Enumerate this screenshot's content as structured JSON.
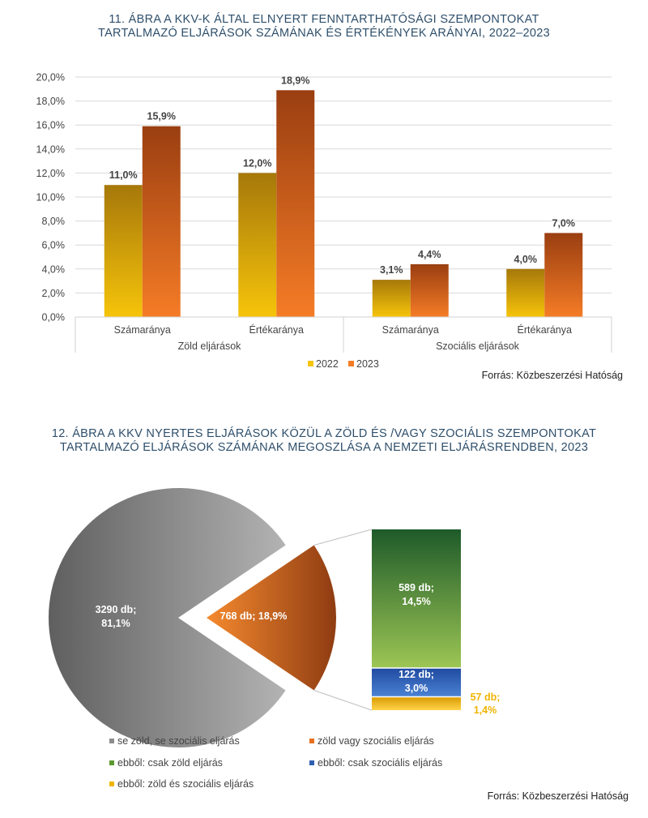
{
  "chart1": {
    "title_lines": [
      "11. ÁBRA A KKV-K ÁLTAL ELNYERT FENNTARTHATÓSÁGI SZEMPONTOKAT",
      "TARTALMAZÓ ELJÁRÁSOK SZÁMÁNAK ÉS ÉRTÉKÉNYEK ARÁNYAI, 2022–2023"
    ],
    "source": "Forrás: Közbeszerzési Hatóság"
  },
  "chart2": {
    "title_lines": [
      "12. ÁBRA A KKV NYERTES ELJÁRÁSOK KÖZÜL A ZÖLD ÉS /VAGY SZOCIÁLIS SZEMPONTOKAT",
      "TARTALMAZÓ ELJÁRÁSOK SZÁMÁNAK MEGOSZLÁSA A NEMZETI ELJÁRÁSRENDBEN, 2023"
    ],
    "source": "Forrás: Közbeszerzési Hatóság"
  },
  "chart_data": [
    {
      "type": "bar",
      "title": "11. ÁBRA A KKV-K ÁLTAL ELNYERT FENNTARTHATÓSÁGI SZEMPONTOKAT TARTALMAZÓ ELJÁRÁSOK SZÁMÁNAK ÉS ÉRTÉKÉNYEK ARÁNYAI, 2022–2023",
      "categories": [
        "Számaránya",
        "Értékaránya",
        "Számaránya",
        "Értékaránya"
      ],
      "groups": [
        {
          "label": "Zöld eljárások",
          "span": 2
        },
        {
          "label": "Szociális eljárások",
          "span": 2
        }
      ],
      "series": [
        {
          "name": "2022",
          "values": [
            11.0,
            12.0,
            3.1,
            4.0
          ],
          "labels": [
            "11,0%",
            "12,0%",
            "3,1%",
            "4,0%"
          ],
          "color_top": "#a6780a",
          "color_bottom": "#f6c40a"
        },
        {
          "name": "2023",
          "values": [
            15.9,
            18.9,
            4.4,
            7.0
          ],
          "labels": [
            "15,9%",
            "18,9%",
            "4,4%",
            "7,0%"
          ],
          "color_top": "#9a3e11",
          "color_bottom": "#f57c26"
        }
      ],
      "y_ticks": [
        0,
        2,
        4,
        6,
        8,
        10,
        12,
        14,
        16,
        18,
        20
      ],
      "y_tick_labels": [
        "0,0%",
        "2,0%",
        "4,0%",
        "6,0%",
        "8,0%",
        "10,0%",
        "12,0%",
        "14,0%",
        "16,0%",
        "18,0%",
        "20,0%"
      ],
      "ylim": [
        0,
        20
      ],
      "grid": true,
      "legend": "bottom"
    },
    {
      "type": "pie",
      "title": "12. ÁBRA A KKV NYERTES ELJÁRÁSOK KÖZÜL A ZÖLD ÉS /VAGY SZOCIÁLIS SZEMPONTOKAT TARTALMAZÓ ELJÁRÁSOK SZÁMÁNAK MEGOSZLÁSA A NEMZETI ELJÁRÁSRENDBEN, 2023",
      "slices": [
        {
          "name": "se zöld, se szociális eljárás",
          "count": 3290,
          "percent": 81.1,
          "label_lines": [
            "3290 db;",
            "81,1%"
          ],
          "color": "#8c8c8c"
        },
        {
          "name": "zöld vagy szociális eljárás",
          "count": 768,
          "percent": 18.9,
          "label_lines": [
            "768 db; 18,9%"
          ],
          "color": "#e5701f"
        }
      ],
      "breakdown": [
        {
          "name": "ebből: csak zöld eljárás",
          "count": 589,
          "percent": 14.5,
          "label_lines": [
            "589 db;",
            "14,5%"
          ],
          "color": "#5c9a30"
        },
        {
          "name": "ebből: csak szociális eljárás",
          "count": 122,
          "percent": 3.0,
          "label_lines": [
            "122 db;",
            "3,0%"
          ],
          "color": "#2f5fb0"
        },
        {
          "name": "ebből: zöld és szociális eljárás",
          "count": 57,
          "percent": 1.4,
          "label_lines": [
            "57 db;",
            "1,4%"
          ],
          "color": "#f0b400"
        }
      ],
      "legend": "bottom"
    }
  ]
}
